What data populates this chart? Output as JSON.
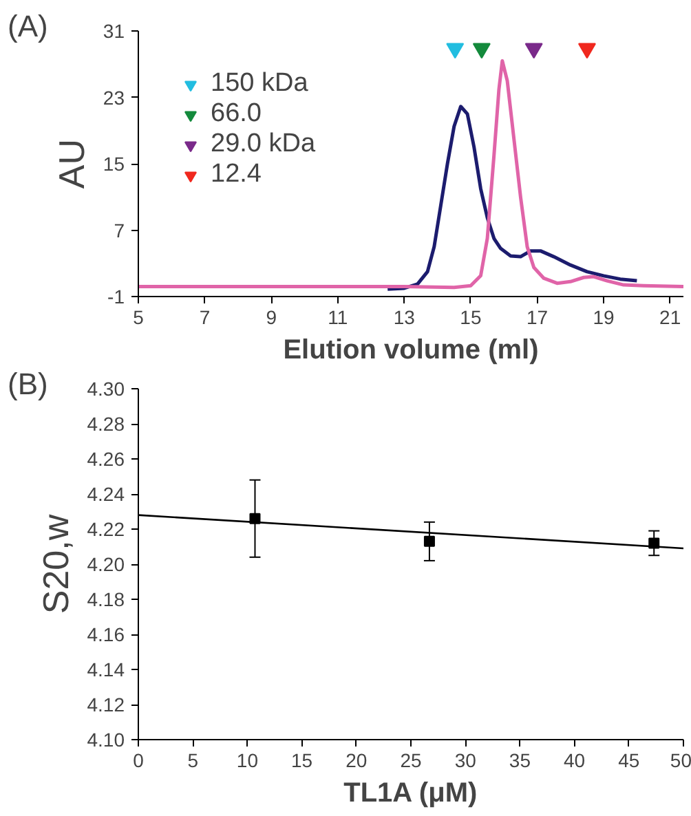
{
  "chart_data": [
    {
      "type": "line",
      "title": "(A)",
      "xlabel": "Elution volume (ml)",
      "ylabel": "AU",
      "xlim": [
        5,
        21.4
      ],
      "ylim": [
        -1,
        31
      ],
      "xticks": [
        5,
        7,
        9,
        11,
        13,
        15,
        17,
        19,
        21
      ],
      "yticks": [
        -1,
        7,
        15,
        23,
        31
      ],
      "grid": false,
      "legend": "top left",
      "series": [
        {
          "color": "#1c1c6e",
          "x": [
            12.5,
            13.0,
            13.4,
            13.7,
            13.9,
            14.1,
            14.3,
            14.5,
            14.7,
            14.9,
            15.1,
            15.3,
            15.5,
            15.7,
            15.9,
            16.2,
            16.5,
            16.8,
            17.1,
            17.5,
            18.0,
            18.5,
            19.0,
            19.5,
            20.0
          ],
          "values": [
            -0.1,
            0.0,
            0.5,
            2,
            5,
            10,
            15,
            19.5,
            21.9,
            21,
            17,
            12,
            8.5,
            6,
            4.8,
            3.9,
            3.8,
            4.5,
            4.5,
            3.8,
            2.8,
            2.0,
            1.5,
            1.1,
            0.9
          ]
        },
        {
          "color": "#e064a8",
          "x": [
            5,
            13,
            14.5,
            15.0,
            15.3,
            15.5,
            15.7,
            15.85,
            15.95,
            16.1,
            16.3,
            16.5,
            16.7,
            16.9,
            17.2,
            17.6,
            18.0,
            18.4,
            18.7,
            19.1,
            19.6,
            20.2,
            21.4
          ],
          "values": [
            0.2,
            0.2,
            0.1,
            0.3,
            1.5,
            6,
            16,
            24,
            27.4,
            25,
            18,
            11,
            5,
            2.5,
            1.2,
            0.6,
            0.8,
            1.3,
            1.4,
            0.9,
            0.4,
            0.3,
            0.2
          ]
        },
        {
          "type": "scatter",
          "marker": "triangle",
          "name": "150 kDa",
          "color": "#22bde0",
          "x": [
            14.53
          ],
          "values": [
            28.9
          ]
        },
        {
          "type": "scatter",
          "marker": "triangle",
          "name": "66.0",
          "color": "#148a3c",
          "x": [
            15.33
          ],
          "values": [
            28.9
          ]
        },
        {
          "type": "scatter",
          "marker": "triangle",
          "name": "29.0 kDa",
          "color": "#7a2a8a",
          "x": [
            16.9
          ],
          "values": [
            28.9
          ]
        },
        {
          "type": "scatter",
          "marker": "triangle",
          "name": "12.4",
          "color": "#f0281e",
          "x": [
            18.5
          ],
          "values": [
            28.9
          ]
        }
      ]
    },
    {
      "type": "scatter",
      "title": "(B)",
      "xlabel": "TL1A (μM)",
      "ylabel": "S20,w",
      "xlim": [
        0,
        50
      ],
      "ylim": [
        4.1,
        4.3
      ],
      "xticks": [
        0,
        5,
        10,
        15,
        20,
        25,
        30,
        35,
        40,
        45,
        50
      ],
      "yticks": [
        {
          "value": 4.1,
          "label": "4.10"
        },
        4.12,
        4.14,
        4.16,
        4.18,
        {
          "value": 4.2,
          "label": "4.20"
        },
        4.22,
        4.24,
        4.26,
        4.28,
        {
          "value": 4.3,
          "label": "4.30"
        }
      ],
      "grid": false,
      "series": [
        {
          "marker": "square",
          "color": "#000000",
          "x": [
            10.7,
            26.7,
            47.3
          ],
          "values": [
            4.226,
            4.213,
            4.212
          ],
          "errors": [
            [
              4.204,
              4.248
            ],
            [
              4.202,
              4.224
            ],
            [
              4.205,
              4.219
            ]
          ]
        },
        {
          "type": "line",
          "color": "#000000",
          "x": [
            0,
            50
          ],
          "values": [
            4.228,
            4.209
          ]
        }
      ]
    }
  ]
}
